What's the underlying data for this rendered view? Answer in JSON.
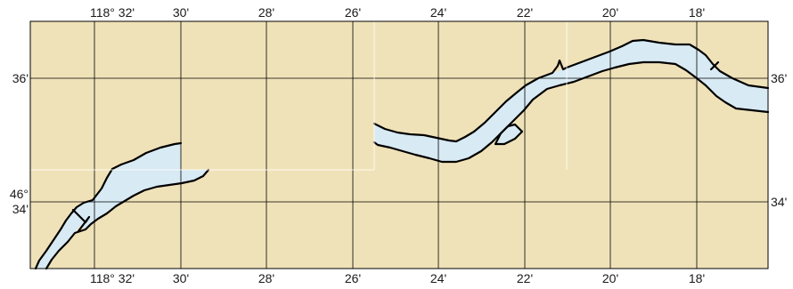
{
  "map": {
    "colors": {
      "land": "#f0e2b8",
      "water": "#d8eaf3",
      "shoreline": "#000000",
      "grid": "#000000"
    },
    "longitude_labels_top": [
      "118° 32'",
      "30'",
      "28'",
      "26'",
      "24'",
      "22'",
      "20'",
      "18'"
    ],
    "longitude_labels_bottom": [
      "118° 32'",
      "30'",
      "28'",
      "26'",
      "24'",
      "22'",
      "20'",
      "18'"
    ],
    "latitude_labels_left": [
      {
        "lines": [
          "36'"
        ]
      },
      {
        "lines": [
          "46°",
          "34'"
        ]
      }
    ],
    "latitude_labels_right": [
      {
        "lines": [
          "36'"
        ]
      },
      {
        "lines": [
          "34'"
        ]
      }
    ]
  }
}
